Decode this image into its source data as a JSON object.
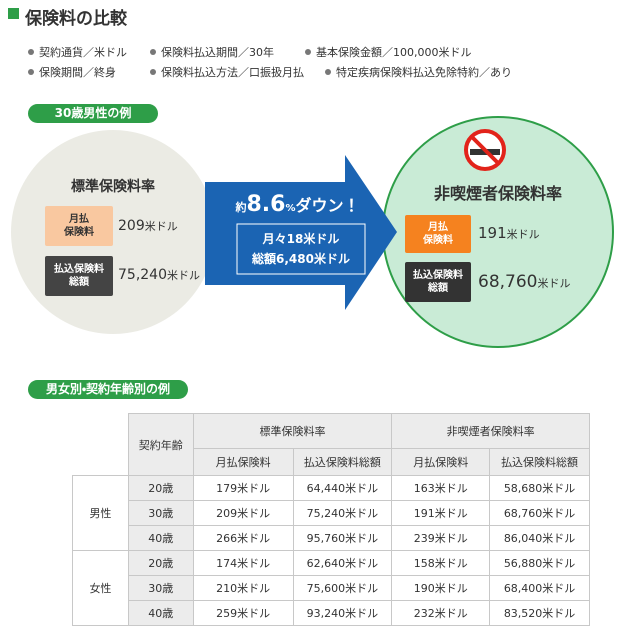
{
  "header": {
    "title": "保険料の比較"
  },
  "conditions": [
    "契約通貨／米ドル",
    "保険料払込期間／30年",
    "基本保険金額／100,000米ドル",
    "保険期間／終身",
    "保険料払込方法／口振扱月払",
    "特定疾病保険料払込免除特約／あり"
  ],
  "example": {
    "label": "30歳男性の例",
    "standard": {
      "title": "標準保険料率",
      "monthly_label": [
        "月払",
        "保険料"
      ],
      "monthly": "209",
      "monthly_unit": "米ドル",
      "total_label": [
        "払込保険料",
        "総額"
      ],
      "total": "75,240",
      "total_unit": "米ドル"
    },
    "reduction": {
      "prefix": "約",
      "rate": "8.6",
      "unit": "%",
      "suffix": "ダウン！",
      "monthly": "月々18米ドル",
      "total": "総額6,480米ドル"
    },
    "nonsmoker": {
      "title": "非喫煙者保険料率",
      "monthly_label": [
        "月払",
        "保険料"
      ],
      "monthly": "191",
      "monthly_unit": "米ドル",
      "total_label": [
        "払込保険料",
        "総額"
      ],
      "total": "68,760",
      "total_unit": "米ドル"
    }
  },
  "table": {
    "label": "男女別・契約年齢別の例",
    "age_header": "契約年齢",
    "group_headers": [
      "標準保険料率",
      "非喫煙者保険料率"
    ],
    "sub_headers": [
      "月払保険料",
      "払込保険料総額",
      "月払保険料",
      "払込保険料総額"
    ],
    "groups": [
      {
        "label": "男性",
        "rows": [
          [
            "20歳",
            "179米ドル",
            "64,440米ドル",
            "163米ドル",
            "58,680米ドル"
          ],
          [
            "30歳",
            "209米ドル",
            "75,240米ドル",
            "191米ドル",
            "68,760米ドル"
          ],
          [
            "40歳",
            "266米ドル",
            "95,760米ドル",
            "239米ドル",
            "86,040米ドル"
          ]
        ]
      },
      {
        "label": "女性",
        "rows": [
          [
            "20歳",
            "174米ドル",
            "62,640米ドル",
            "158米ドル",
            "56,880米ドル"
          ],
          [
            "30歳",
            "210米ドル",
            "75,600米ドル",
            "190米ドル",
            "68,400米ドル"
          ],
          [
            "40歳",
            "259米ドル",
            "93,240米ドル",
            "232米ドル",
            "83,520米ドル"
          ]
        ]
      }
    ]
  }
}
